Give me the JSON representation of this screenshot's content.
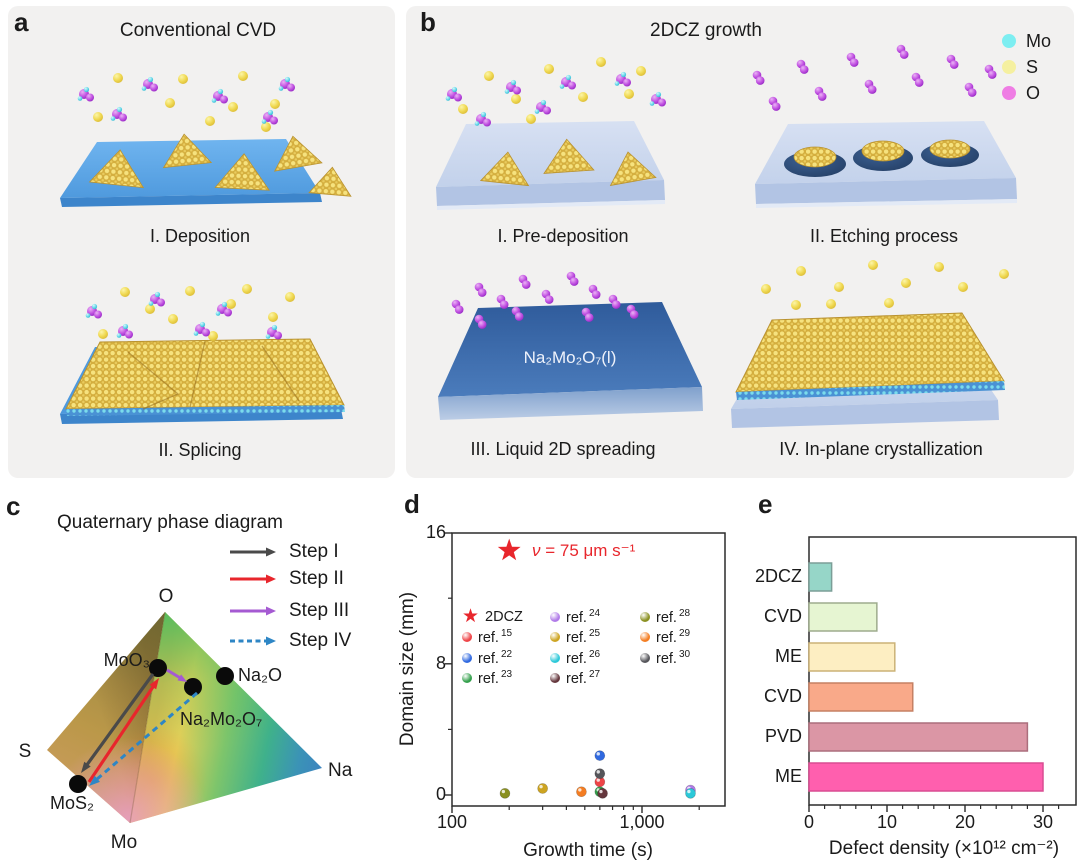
{
  "figure": {
    "bg": "#ffffff",
    "card_bg": "#f2f1f0",
    "text_color": "#1b1b1b"
  },
  "panel_a": {
    "label": "a",
    "title": "Conventional CVD",
    "caption_1": "I. Deposition",
    "caption_2": "II. Splicing"
  },
  "panel_b": {
    "label": "b",
    "title": "2DCZ growth",
    "caption_1": "I. Pre-deposition",
    "caption_2": "II. Etching process",
    "caption_3": "III. Liquid 2D spreading",
    "caption_4": "IV. In-plane crystallization",
    "liquid_label": "Na₂Mo₂O₇(l)"
  },
  "atom_legend": {
    "items": [
      {
        "label": "Mo",
        "color": "#7deef1"
      },
      {
        "label": "S",
        "color": "#f5f0a0"
      },
      {
        "label": "O",
        "color": "#ef7de4"
      }
    ]
  },
  "panel_c": {
    "label": "c",
    "title": "Quaternary phase diagram",
    "vertices": {
      "top": "O",
      "left": "S",
      "right": "Na",
      "bottom": "Mo"
    },
    "compounds": {
      "moo3": "MoO₃",
      "na2o": "Na₂O",
      "na2mo2o7": "Na₂Mo₂O₇",
      "mos2": "MoS₂"
    },
    "steps": [
      {
        "label": "Step I",
        "color": "#4a4a4a",
        "dashed": false
      },
      {
        "label": "Step II",
        "color": "#e8262c",
        "dashed": false
      },
      {
        "label": "Step III",
        "color": "#a55ad2",
        "dashed": false
      },
      {
        "label": "Step IV",
        "color": "#2e86c5",
        "dashed": true
      }
    ]
  },
  "panel_d": {
    "label": "d"
  },
  "panel_e": {
    "label": "e"
  },
  "chart_data": [
    {
      "id": "d",
      "type": "scatter",
      "xlabel": "Growth time (s)",
      "ylabel": "Domain size (mm)",
      "xscale": "log",
      "xlim": [
        100,
        2700
      ],
      "ylim": [
        -0.8,
        16
      ],
      "xticks": [
        {
          "v": 100,
          "label": "100"
        },
        {
          "v": 1000,
          "label": "1,000"
        }
      ],
      "yticks": [
        {
          "v": 0,
          "label": "0"
        },
        {
          "v": 8,
          "label": "8"
        },
        {
          "v": 16,
          "label": "16"
        }
      ],
      "yticks_minor": [
        4,
        12
      ],
      "xticks_minor": [
        200,
        300,
        400,
        500,
        600,
        700,
        800,
        900,
        2000
      ],
      "star_point": {
        "label": "2DCZ",
        "color": "#e8262c",
        "growth_time_s": 200,
        "domain_size_mm": 14.9
      },
      "annotation": {
        "nu": "ν",
        "rest": " = 75 μm s⁻¹",
        "color": "#e8262c"
      },
      "ref_label": "ref.",
      "points": [
        {
          "ref": "15",
          "color": "#ee4447",
          "growth_time_s": 600,
          "domain_size_mm": 0.8
        },
        {
          "ref": "22",
          "color": "#3069e0",
          "growth_time_s": 600,
          "domain_size_mm": 2.4
        },
        {
          "ref": "23",
          "color": "#34a04c",
          "growth_time_s": 600,
          "domain_size_mm": 0.2
        },
        {
          "ref": "24",
          "color": "#b07ae8",
          "growth_time_s": 1800,
          "domain_size_mm": 0.3
        },
        {
          "ref": "25",
          "color": "#cda421",
          "growth_time_s": 300,
          "domain_size_mm": 0.4
        },
        {
          "ref": "26",
          "color": "#2cc8d8",
          "growth_time_s": 1800,
          "domain_size_mm": 0.1
        },
        {
          "ref": "27",
          "color": "#64363c",
          "growth_time_s": 620,
          "domain_size_mm": 0.1
        },
        {
          "ref": "28",
          "color": "#8a9021",
          "growth_time_s": 190,
          "domain_size_mm": 0.1
        },
        {
          "ref": "29",
          "color": "#f47d22",
          "growth_time_s": 480,
          "domain_size_mm": 0.2
        },
        {
          "ref": "30",
          "color": "#55555a",
          "growth_time_s": 600,
          "domain_size_mm": 1.3
        }
      ],
      "legend_columns": [
        [
          "2DCZ",
          "15",
          "22",
          "23"
        ],
        [
          "24",
          "25",
          "26",
          "27"
        ],
        [
          "28",
          "29",
          "30"
        ]
      ]
    },
    {
      "id": "e",
      "type": "bar",
      "orientation": "horizontal",
      "xlabel": "Defect density (×10¹² cm⁻²)",
      "xlim": [
        0,
        34
      ],
      "xticks": [
        {
          "v": 0,
          "label": "0"
        },
        {
          "v": 10,
          "label": "10"
        },
        {
          "v": 20,
          "label": "20"
        },
        {
          "v": 30,
          "label": "30"
        }
      ],
      "categories": [
        "2DCZ",
        "CVD",
        "ME",
        "CVD",
        "PVD",
        "ME"
      ],
      "values": [
        2.9,
        8.7,
        11.0,
        13.3,
        28.0,
        30.0
      ],
      "bar_fills": [
        "#96d6c8",
        "#e6f5d2",
        "#fdeec2",
        "#f9a989",
        "#db96a5",
        "#ff5fae"
      ],
      "bar_strokes": [
        "#7b9e97",
        "#9eab8d",
        "#cbb277",
        "#c58063",
        "#ab6e7d",
        "#d94d92"
      ]
    }
  ]
}
